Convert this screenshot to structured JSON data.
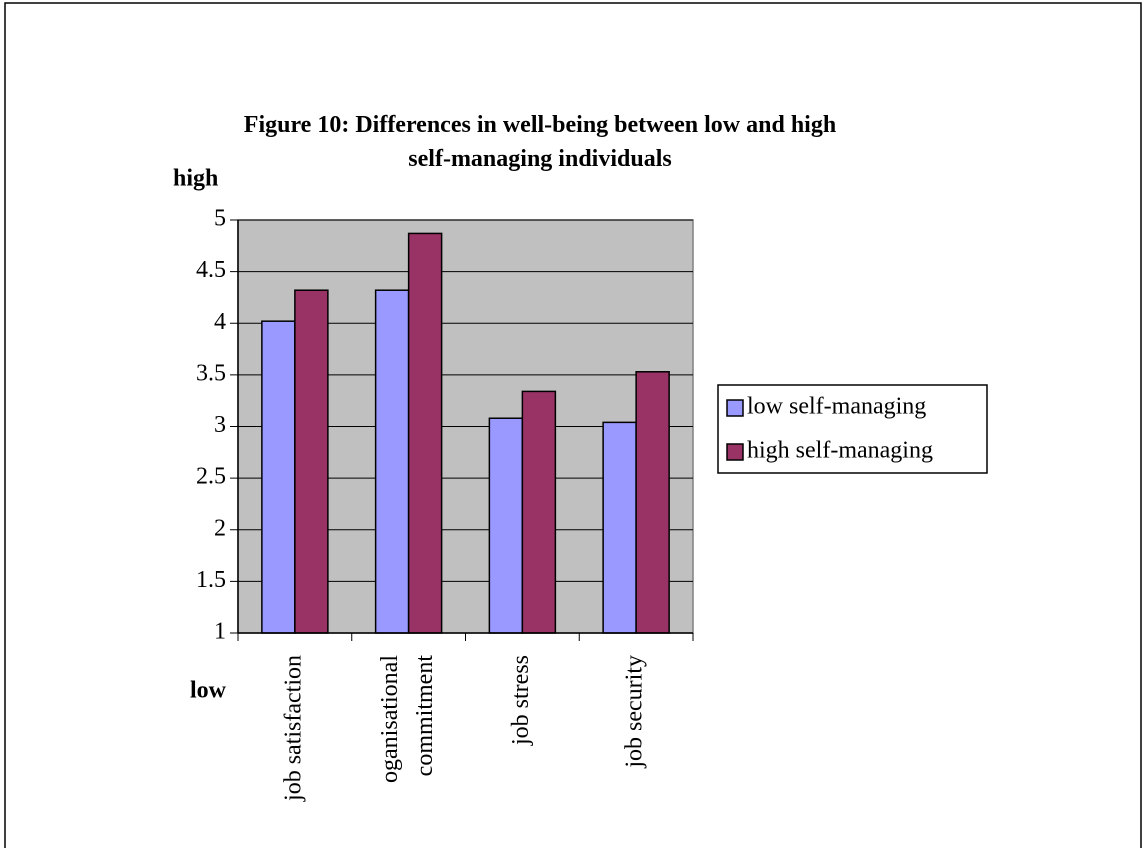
{
  "chart_data": {
    "type": "bar",
    "title": "Figure 10: Differences in well-being between low and high self-managing individuals",
    "y_top_label": "high",
    "y_bottom_label": "low",
    "categories": [
      "job satisfaction",
      "oganisational commitment",
      "job stress",
      "job security"
    ],
    "series": [
      {
        "name": "low self-managing",
        "color": "#9999ff",
        "values": [
          4.02,
          4.32,
          3.08,
          3.04
        ]
      },
      {
        "name": "high self-managing",
        "color": "#993366",
        "values": [
          4.32,
          4.87,
          3.34,
          3.53
        ]
      }
    ],
    "ylim": [
      1,
      5
    ],
    "yticks": [
      1,
      1.5,
      2,
      2.5,
      3,
      3.5,
      4,
      4.5,
      5
    ],
    "grid": true,
    "plot_background": "#c0c0c0",
    "legend": "right"
  }
}
